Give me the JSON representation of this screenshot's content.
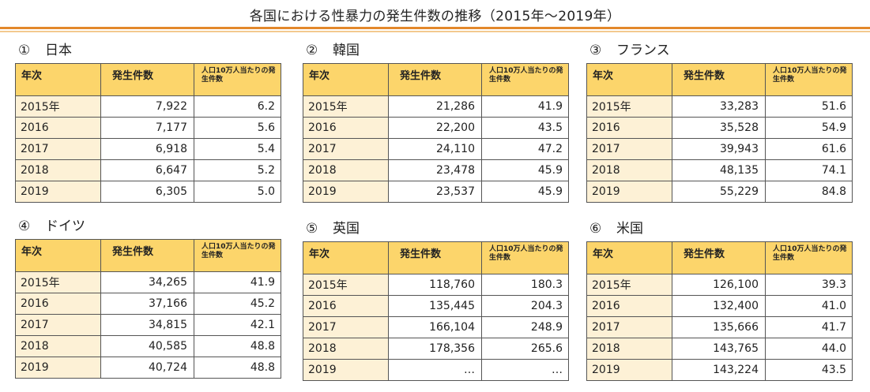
{
  "title": "各国における性暴力の発生件数の推移（2015年〜2019年）",
  "headers": {
    "year": "年次",
    "count": "発生件数",
    "rate": "人口10万人当たりの発生件数"
  },
  "countries": [
    {
      "num": "①",
      "name": "日本",
      "rows": [
        [
          "2015年",
          "7,922",
          "6.2"
        ],
        [
          "2016",
          "7,177",
          "5.6"
        ],
        [
          "2017",
          "6,918",
          "5.4"
        ],
        [
          "2018",
          "6,647",
          "5.2"
        ],
        [
          "2019",
          "6,305",
          "5.0"
        ]
      ]
    },
    {
      "num": "②",
      "name": "韓国",
      "rows": [
        [
          "2015年",
          "21,286",
          "41.9"
        ],
        [
          "2016",
          "22,200",
          "43.5"
        ],
        [
          "2017",
          "24,110",
          "47.2"
        ],
        [
          "2018",
          "23,478",
          "45.9"
        ],
        [
          "2019",
          "23,537",
          "45.9"
        ]
      ]
    },
    {
      "num": "③",
      "name": "フランス",
      "rows": [
        [
          "2015年",
          "33,283",
          "51.6"
        ],
        [
          "2016",
          "35,528",
          "54.9"
        ],
        [
          "2017",
          "39,943",
          "61.6"
        ],
        [
          "2018",
          "48,135",
          "74.1"
        ],
        [
          "2019",
          "55,229",
          "84.8"
        ]
      ]
    },
    {
      "num": "④",
      "name": "ドイツ",
      "rows": [
        [
          "2015年",
          "34,265",
          "41.9"
        ],
        [
          "2016",
          "37,166",
          "45.2"
        ],
        [
          "2017",
          "34,815",
          "42.1"
        ],
        [
          "2018",
          "40,585",
          "48.8"
        ],
        [
          "2019",
          "40,724",
          "48.8"
        ]
      ]
    },
    {
      "num": "⑤",
      "name": "英国",
      "rows": [
        [
          "2015年",
          "118,760",
          "180.3"
        ],
        [
          "2016",
          "135,445",
          "204.3"
        ],
        [
          "2017",
          "166,104",
          "248.9"
        ],
        [
          "2018",
          "178,356",
          "265.6"
        ],
        [
          "2019",
          "…",
          "…"
        ]
      ]
    },
    {
      "num": "⑥",
      "name": "米国",
      "rows": [
        [
          "2015年",
          "126,100",
          "39.3"
        ],
        [
          "2016",
          "132,400",
          "41.0"
        ],
        [
          "2017",
          "135,666",
          "41.7"
        ],
        [
          "2018",
          "143,765",
          "44.0"
        ],
        [
          "2019",
          "143,224",
          "43.5"
        ]
      ]
    }
  ]
}
